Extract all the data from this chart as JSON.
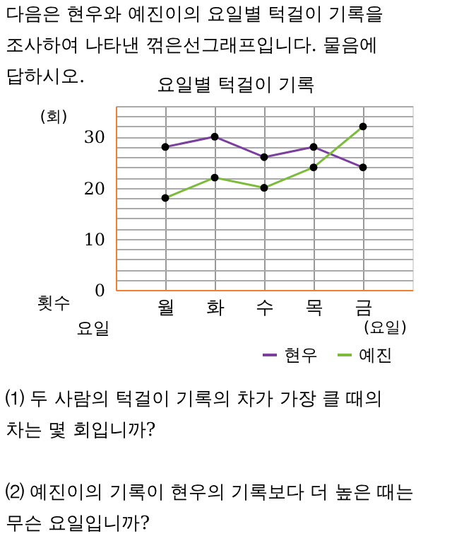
{
  "chart_data": {
    "type": "line",
    "title": "요일별 턱걸이 기록",
    "categories": [
      "월",
      "화",
      "수",
      "목",
      "금"
    ],
    "series": [
      {
        "name": "현우",
        "color": "#7b3f9e",
        "values": [
          28,
          30,
          26,
          28,
          24
        ]
      },
      {
        "name": "예진",
        "color": "#7cbb3c",
        "values": [
          18,
          22,
          20,
          24,
          32
        ]
      }
    ],
    "ylabel": "(회)",
    "xlabel": "(요일)",
    "ylim": [
      0,
      36
    ],
    "yticks": [
      0,
      {
        "value": 2,
        "label": null
      },
      {
        "value": 4,
        "label": null
      },
      {
        "value": 6,
        "label": null
      },
      {
        "value": 8,
        "label": null
      },
      10,
      {
        "value": 12,
        "label": null
      },
      {
        "value": 14,
        "label": null
      },
      {
        "value": 16,
        "label": null
      },
      {
        "value": 18,
        "label": null
      },
      20,
      {
        "value": 22,
        "label": null
      },
      {
        "value": 24,
        "label": null
      },
      {
        "value": 26,
        "label": null
      },
      {
        "value": 28,
        "label": null
      },
      30,
      {
        "value": 32,
        "label": null
      },
      {
        "value": 34,
        "label": null
      },
      {
        "value": 36,
        "label": null
      }
    ],
    "grid": true,
    "marker": "circle",
    "line_style": "solid",
    "legend": "bottom right",
    "annotations": [
      "다음은 현우와 예진이의 요일별 턱걸이 기록을 조사하여 나타낸 꺾은선그래프입니다. 물음에 답하시오.",
      "횟수",
      "요일",
      "⑴ 두 사람의 턱걸이 기록의 차가 가장 클 때의 차는 몇 회입니까?",
      "⑵ 예진이의 기록이 현우의 기록보다 더 높은 때는 무슨 요일입니까?"
    ]
  }
}
